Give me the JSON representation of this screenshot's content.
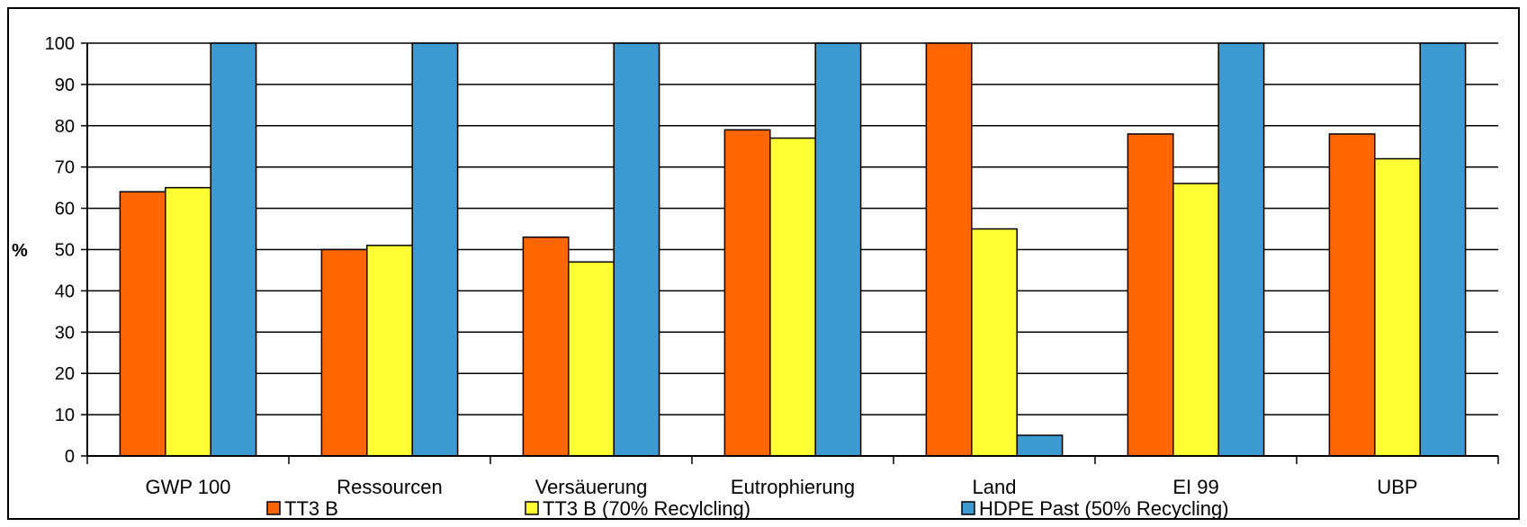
{
  "chart_data": {
    "type": "bar",
    "title": "",
    "xlabel": "",
    "ylabel": "%",
    "ylim": [
      0,
      100
    ],
    "yticks": [
      0,
      10,
      20,
      30,
      40,
      50,
      60,
      70,
      80,
      90,
      100
    ],
    "grid": true,
    "legend_position": "bottom",
    "categories": [
      "GWP 100",
      "Ressourcen",
      "Versäuerung",
      "Eutrophierung",
      "Land",
      "EI 99",
      "UBP"
    ],
    "series": [
      {
        "name": "TT3 B",
        "color": "#FF6600",
        "values": [
          64,
          50,
          53,
          79,
          100,
          78,
          78
        ]
      },
      {
        "name": "TT3 B (70% Recylcling)",
        "color": "#FFFF33",
        "values": [
          65,
          51,
          47,
          77,
          55,
          66,
          72
        ]
      },
      {
        "name": "HDPE Past (50% Recycling)",
        "color": "#3B9BD0",
        "values": [
          100,
          100,
          100,
          100,
          5,
          100,
          100
        ]
      }
    ]
  }
}
